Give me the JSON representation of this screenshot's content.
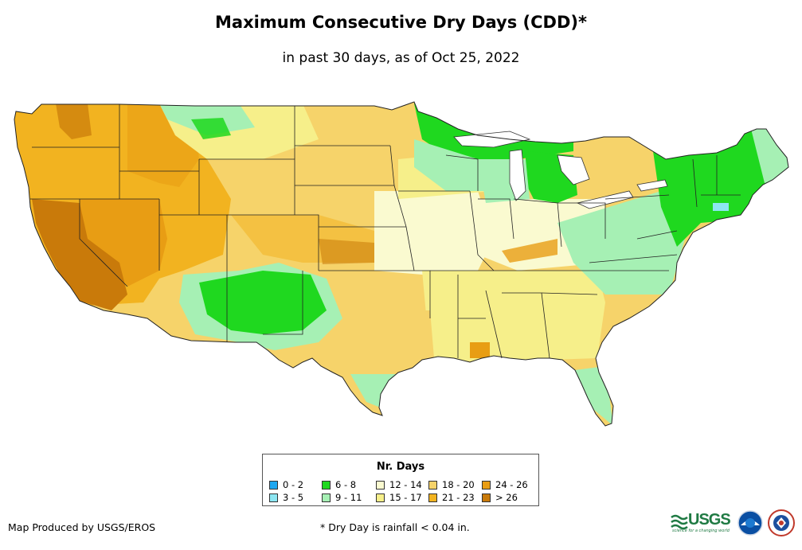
{
  "title": "Maximum Consecutive Dry Days (CDD)*",
  "subtitle": "in past 30 days, as of Oct 25, 2022",
  "legend": {
    "title": "Nr. Days",
    "items": [
      {
        "label": "0 - 2",
        "color": "#1ea7f0"
      },
      {
        "label": "3 - 5",
        "color": "#8de6f2"
      },
      {
        "label": "6 - 8",
        "color": "#1fd81f"
      },
      {
        "label": "9 - 11",
        "color": "#a6f0b4"
      },
      {
        "label": "12 - 14",
        "color": "#fafad0"
      },
      {
        "label": "15 - 17",
        "color": "#f6ef8a"
      },
      {
        "label": "18 - 20",
        "color": "#f6d36a"
      },
      {
        "label": "21 - 23",
        "color": "#f2b320"
      },
      {
        "label": "24 - 26",
        "color": "#e89d14"
      },
      {
        "label": "> 26",
        "color": "#c97a0a"
      }
    ]
  },
  "credit": "Map Produced by USGS/EROS",
  "footnote": "* Dry Day is rainfall < 0.04 in.",
  "logos": {
    "usgs_text": "USGS",
    "usgs_tagline": "science for a changing world"
  }
}
